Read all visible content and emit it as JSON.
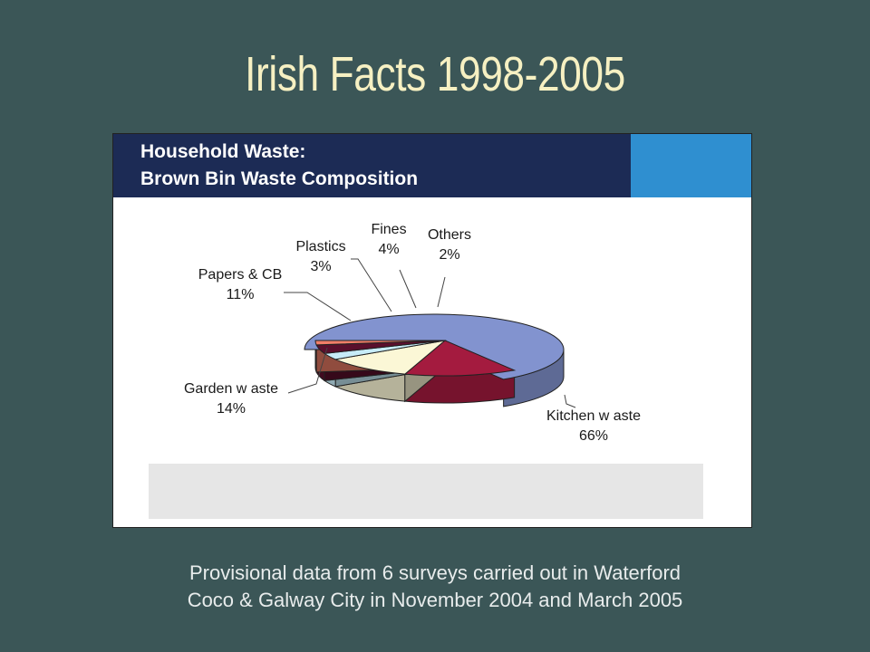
{
  "slide": {
    "title": "Irish Facts 1998-2005",
    "caption_line1": "Provisional data from 6 surveys carried out in Waterford",
    "caption_line2": "Coco & Galway City in November 2004 and March 2005"
  },
  "chart_data": {
    "type": "pie",
    "style": "3d-exploded",
    "title_line1": "Household Waste:",
    "title_line2": "Brown Bin Waste Composition",
    "slices": [
      {
        "label": "Kitchen w aste",
        "value": 66,
        "value_label": "66%",
        "color": "#8293cf"
      },
      {
        "label": "Garden w aste",
        "value": 14,
        "value_label": "14%",
        "color": "#a41b3f"
      },
      {
        "label": "Papers & CB",
        "value": 11,
        "value_label": "11%",
        "color": "#fbf7d6"
      },
      {
        "label": "Plastics",
        "value": 3,
        "value_label": "3%",
        "color": "#c7ecf8"
      },
      {
        "label": "Fines",
        "value": 4,
        "value_label": "4%",
        "color": "#5a0f2c"
      },
      {
        "label": "Others",
        "value": 2,
        "value_label": "2%",
        "color": "#f07e68"
      }
    ],
    "header_color": "#1c2b55",
    "accent_color": "#2f8fd0"
  }
}
